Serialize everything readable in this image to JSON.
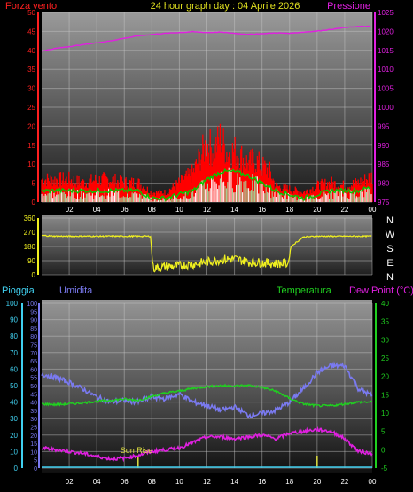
{
  "header": {
    "left_label": "Forza vento",
    "title": "24 hour graph day : 04 Aprile 2026",
    "right_label": "Pressione"
  },
  "colors": {
    "background": "#000000",
    "wind_axis": "#ff2020",
    "pressure": "#e020e0",
    "direction": "#f0f020",
    "rain": "#40d0f0",
    "humidity": "#7a7af0",
    "temperature": "#20d020",
    "dewpoint": "#e020e0",
    "sunrise": "#e0e040",
    "gust": "#ff0000",
    "wind_avg": "#00cc00",
    "wind_low": "#ffffff"
  },
  "chart_data": [
    {
      "type": "line",
      "title": "24 hour graph day : 04 Aprile 2026",
      "x_ticks": [
        "02",
        "04",
        "06",
        "08",
        "10",
        "12",
        "14",
        "16",
        "18",
        "20",
        "22",
        "00"
      ],
      "x_range": [
        0,
        24
      ],
      "left_axis": {
        "label": "Forza vento",
        "ticks": [
          0,
          5,
          10,
          15,
          20,
          25,
          30,
          35,
          40,
          45,
          50
        ],
        "range": [
          0,
          50
        ]
      },
      "right_axis": {
        "label": "Pressione",
        "ticks": [
          975,
          980,
          985,
          990,
          995,
          1000,
          1005,
          1010,
          1015,
          1020,
          1025
        ],
        "range": [
          975,
          1025
        ]
      },
      "grid": true,
      "series": [
        {
          "name": "Pressione",
          "axis": "right",
          "x": [
            0,
            1,
            2,
            3,
            4,
            5,
            6,
            7,
            8,
            9,
            10,
            11,
            12,
            13,
            14,
            15,
            16,
            17,
            18,
            19,
            20,
            21,
            22,
            23,
            24
          ],
          "y": [
            1014.8,
            1015.5,
            1016,
            1016.5,
            1017,
            1017.5,
            1018.2,
            1018.8,
            1019.2,
            1019.5,
            1019.7,
            1019.9,
            1019.7,
            1019.8,
            1019.5,
            1019.2,
            1019.4,
            1019.6,
            1019.5,
            1019.8,
            1020.1,
            1020.5,
            1021,
            1021.3,
            1021.3
          ]
        },
        {
          "name": "gust",
          "axis": "left",
          "x": [
            0,
            1,
            2,
            3,
            4,
            5,
            6,
            7,
            8,
            9,
            10,
            11,
            11.5,
            12,
            12.5,
            13,
            13.5,
            14,
            14.5,
            15,
            15.5,
            16,
            16.5,
            17,
            18,
            19,
            20,
            21,
            22,
            23,
            24
          ],
          "y": [
            7,
            7,
            7,
            6,
            7,
            7,
            6,
            6,
            3,
            3,
            6,
            9,
            14,
            18,
            16,
            20,
            15,
            16,
            14,
            12,
            13,
            11,
            10,
            5,
            4,
            3,
            5,
            6,
            5,
            6,
            8
          ]
        },
        {
          "name": "average",
          "axis": "left",
          "x": [
            0,
            1,
            2,
            3,
            4,
            5,
            6,
            7,
            8,
            9,
            10,
            11,
            12,
            13,
            14,
            15,
            16,
            17,
            18,
            19,
            20,
            21,
            22,
            23,
            24
          ],
          "y": [
            3,
            3,
            3,
            3,
            3,
            3,
            3,
            3,
            1,
            1,
            2,
            3,
            6,
            8,
            8,
            7,
            5,
            3,
            2,
            1,
            2,
            3,
            3,
            3,
            4
          ]
        }
      ]
    },
    {
      "type": "line",
      "x_ticks": [
        "02",
        "04",
        "06",
        "08",
        "10",
        "12",
        "14",
        "16",
        "18",
        "20",
        "22",
        "00"
      ],
      "x_range": [
        0,
        24
      ],
      "left_axis": {
        "ticks": [
          0,
          90,
          180,
          270,
          360
        ],
        "range": [
          0,
          360
        ]
      },
      "right_labels": [
        "N",
        "W",
        "S",
        "E",
        "N"
      ],
      "grid": true,
      "series": [
        {
          "name": "direction",
          "x": [
            0,
            1,
            2,
            3,
            4,
            5,
            6,
            7,
            7.9,
            8.1,
            9,
            10,
            11,
            12,
            13,
            14,
            15,
            16,
            17,
            17.9,
            18.1,
            19,
            20,
            21,
            22,
            23,
            24
          ],
          "y": [
            250,
            245,
            245,
            245,
            245,
            245,
            245,
            245,
            245,
            30,
            40,
            45,
            55,
            70,
            85,
            90,
            70,
            65,
            60,
            60,
            180,
            240,
            245,
            245,
            245,
            245,
            245
          ]
        }
      ]
    },
    {
      "type": "line",
      "x_ticks": [
        "02",
        "04",
        "06",
        "08",
        "10",
        "12",
        "14",
        "16",
        "18",
        "20",
        "22",
        "00"
      ],
      "x_range": [
        0,
        24
      ],
      "top_labels": {
        "rain": "Pioggia",
        "humidity": "Umidita",
        "temperature": "Temperatura",
        "dewpoint": "Dew Point (°C)"
      },
      "rain_axis": {
        "ticks": [
          0,
          10,
          20,
          30,
          40,
          50,
          60,
          70,
          80,
          90,
          100
        ],
        "range": [
          0,
          100
        ]
      },
      "humidity_axis": {
        "ticks": [
          0,
          5,
          10,
          15,
          20,
          25,
          30,
          35,
          40,
          45,
          50,
          55,
          60,
          65,
          70,
          75,
          80,
          85,
          90,
          95,
          100
        ],
        "range": [
          0,
          100
        ]
      },
      "temp_axis": {
        "ticks": [
          -5,
          0,
          5,
          10,
          15,
          20,
          25,
          30,
          35,
          40
        ],
        "range": [
          -5,
          40
        ]
      },
      "annotations": [
        {
          "text": "Sun Rise",
          "x": 7.0
        }
      ],
      "markers_x": [
        7.0,
        20.0
      ],
      "grid": true,
      "series": [
        {
          "name": "Umidita",
          "axis": "humidity",
          "x": [
            0,
            1,
            2,
            3,
            4,
            5,
            6,
            7,
            8,
            9,
            10,
            11,
            12,
            13,
            14,
            15,
            16,
            17,
            18,
            19,
            20,
            21,
            22,
            23,
            24
          ],
          "y": [
            57,
            55,
            52,
            48,
            43,
            40,
            41,
            40,
            43,
            42,
            45,
            40,
            38,
            35,
            37,
            32,
            33,
            35,
            40,
            48,
            58,
            62,
            62,
            48,
            44
          ]
        },
        {
          "name": "Temperatura",
          "axis": "temp",
          "x": [
            0,
            1,
            2,
            3,
            4,
            5,
            6,
            7,
            8,
            9,
            10,
            11,
            12,
            13,
            14,
            15,
            16,
            17,
            18,
            19,
            20,
            21,
            22,
            23,
            24
          ],
          "y": [
            12.5,
            12.3,
            12.5,
            12.8,
            13.2,
            13.5,
            13.8,
            13.5,
            14.5,
            15.5,
            16,
            16.8,
            17.2,
            17.5,
            17.4,
            17.6,
            17,
            16,
            14,
            12.5,
            12,
            12,
            12.5,
            13,
            13
          ]
        },
        {
          "name": "Dew Point",
          "axis": "temp",
          "x": [
            0,
            1,
            2,
            3,
            4,
            5,
            6,
            7,
            8,
            9,
            10,
            11,
            12,
            13,
            14,
            15,
            16,
            17,
            18,
            19,
            20,
            21,
            22,
            23,
            24
          ],
          "y": [
            0.5,
            0,
            -0.5,
            -1,
            -1.8,
            -2.5,
            -2.3,
            -1.5,
            -0.5,
            0,
            0.5,
            2,
            3.5,
            3.5,
            3,
            3.5,
            4,
            3,
            4.5,
            5,
            5.5,
            5,
            3,
            -0.5,
            -1
          ]
        },
        {
          "name": "Pioggia",
          "axis": "rain",
          "x": [
            0,
            24
          ],
          "y": [
            0,
            0
          ]
        }
      ]
    }
  ]
}
